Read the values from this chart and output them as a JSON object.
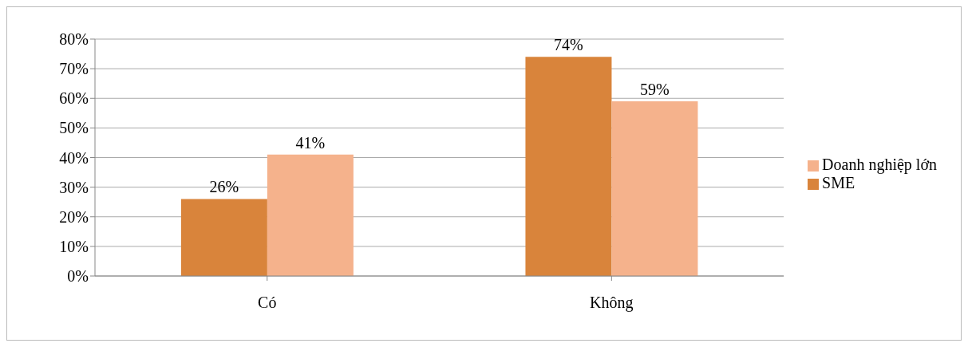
{
  "chart_data": {
    "type": "bar",
    "categories": [
      "Có",
      "Không"
    ],
    "series": [
      {
        "name": "SME",
        "color": "#d9843b",
        "values": [
          26,
          74
        ],
        "value_labels": [
          "26%",
          "74%"
        ]
      },
      {
        "name": "Doanh nghiệp lớn",
        "color": "#f5b28c",
        "values": [
          41,
          59
        ],
        "value_labels": [
          "41%",
          "59%"
        ]
      }
    ],
    "ylim": [
      0,
      80
    ],
    "yticks": [
      {
        "value": 0,
        "label": "0%"
      },
      {
        "value": 10,
        "label": "10%"
      },
      {
        "value": 20,
        "label": "20%"
      },
      {
        "value": 30,
        "label": "30%"
      },
      {
        "value": 40,
        "label": "40%"
      },
      {
        "value": 50,
        "label": "50%"
      },
      {
        "value": 60,
        "label": "60%"
      },
      {
        "value": 70,
        "label": "70%"
      },
      {
        "value": 80,
        "label": "80%"
      }
    ],
    "grid": "y",
    "legend": "right"
  }
}
